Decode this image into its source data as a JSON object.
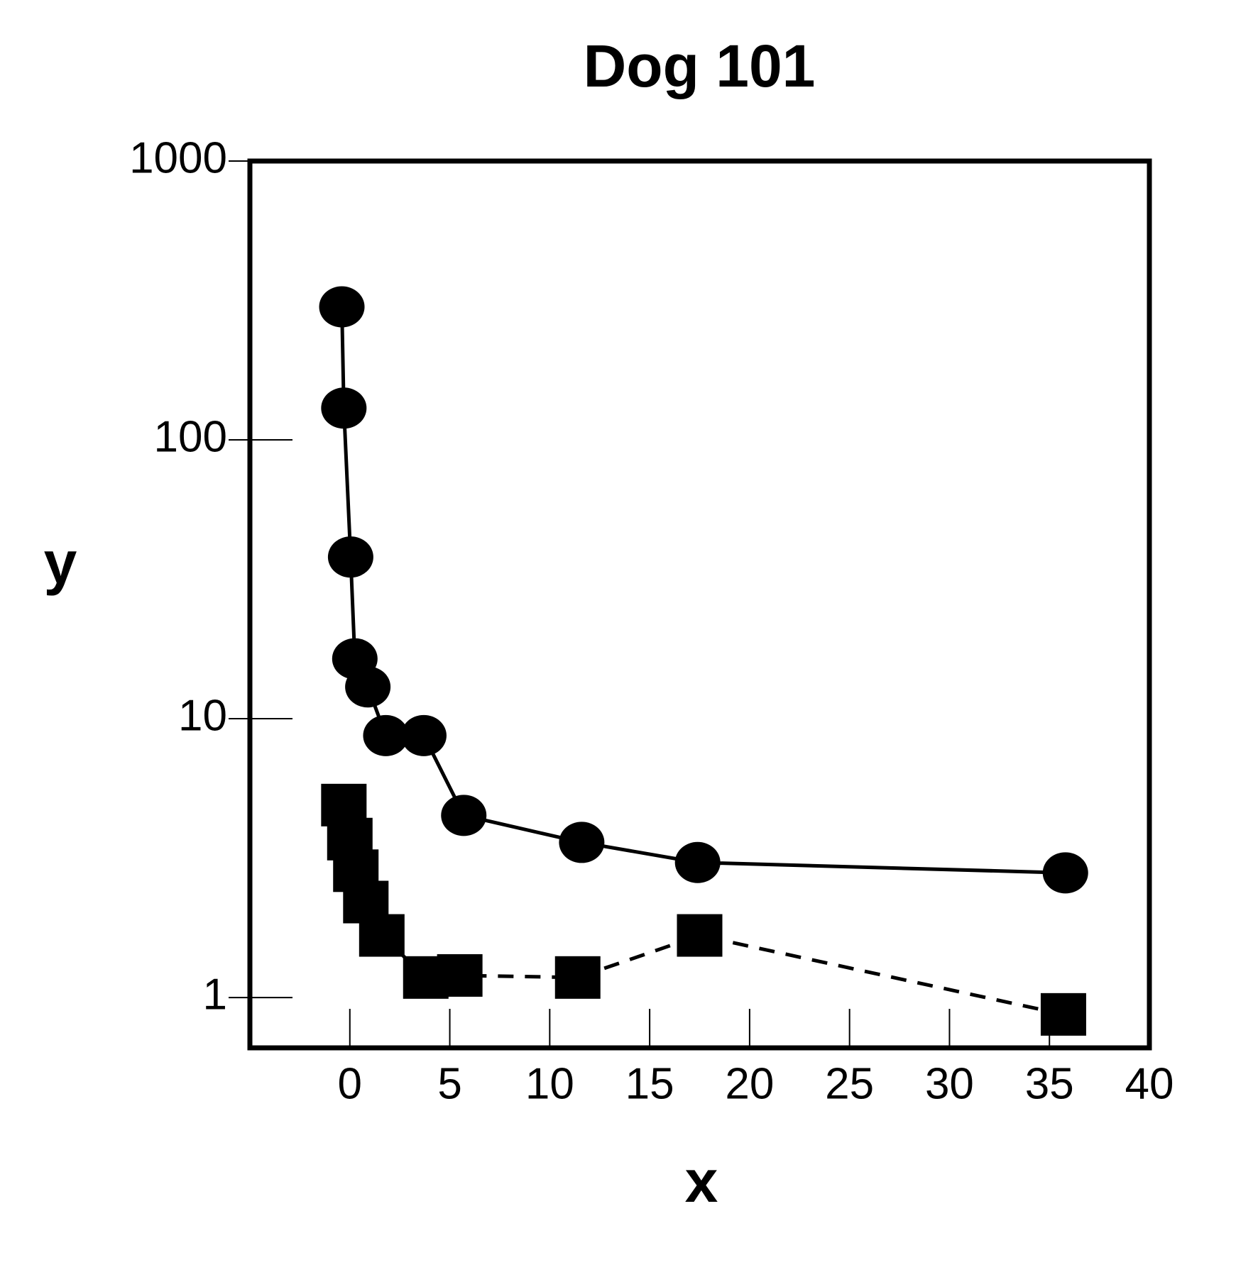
{
  "chart_data": {
    "type": "line",
    "title": "Dog 101",
    "x_label": "x",
    "y_label": "y",
    "xlim": [
      -5,
      40
    ],
    "xticks": [
      0,
      5,
      10,
      15,
      20,
      25,
      30,
      35,
      40
    ],
    "ylim": [
      0.66,
      1000
    ],
    "yticks": [
      1,
      10,
      100,
      1000
    ],
    "y_scale": "log",
    "grid": false,
    "series": [
      {
        "color": "#000000",
        "marker": "circle",
        "linestyle": "solid",
        "x": [
          -0.4,
          -0.3,
          0.04,
          0.25,
          0.9,
          1.8,
          3.7,
          5.7,
          11.6,
          17.4,
          35.8
        ],
        "values": [
          300,
          130,
          38,
          16.4,
          13,
          8.7,
          8.7,
          4.5,
          3.6,
          3.05,
          2.8
        ]
      },
      {
        "color": "#000000",
        "marker": "square",
        "linestyle": "dashed",
        "x": [
          -0.3,
          0,
          0.3,
          0.8,
          1.6,
          3.8,
          5.5,
          11.4,
          17.5,
          35.7
        ],
        "values": [
          4.9,
          3.7,
          2.85,
          2.2,
          1.67,
          1.18,
          1.2,
          1.18,
          1.67,
          0.87
        ]
      }
    ]
  }
}
